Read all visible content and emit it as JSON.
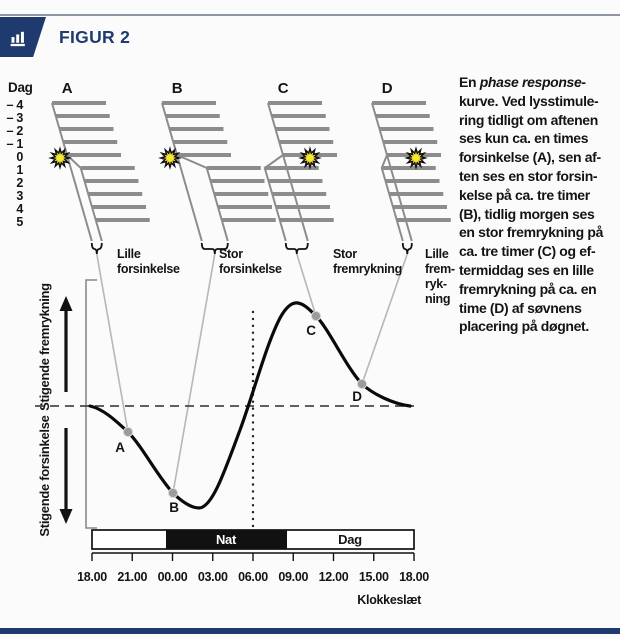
{
  "header": {
    "title": "FIGUR 2"
  },
  "icons": {
    "header": "bar-chart-icon",
    "light_stimulus": "sun-burst-icon"
  },
  "colors": {
    "navy": "#1e3a6e",
    "rule_gray": "#8e96a4",
    "bar_gray": "#8c8c8c",
    "connector_gray": "#b7b7b7",
    "sun_yellow": "#f6e832",
    "night_black": "#111111",
    "curve_black": "#0a0a0a"
  },
  "actogram": {
    "axis_title": "Dag",
    "day_labels": [
      "– 4",
      "– 3",
      "– 2",
      "– 1",
      "0",
      "1",
      "2",
      "3",
      "4",
      "5"
    ],
    "columns": [
      {
        "letter": "A",
        "label_lines": [
          "Lille",
          "forsinkelse"
        ],
        "effect": "delay",
        "shift_hours": 1
      },
      {
        "letter": "B",
        "label_lines": [
          "Stor",
          "forsinkelse"
        ],
        "effect": "delay",
        "shift_hours": 3
      },
      {
        "letter": "C",
        "label_lines": [
          "Stor",
          "fremrykning"
        ],
        "effect": "advance",
        "shift_hours": 3
      },
      {
        "letter": "D",
        "label_lines": [
          "Lille",
          "frem-",
          "ryk-",
          "ning"
        ],
        "effect": "advance",
        "shift_hours": 1
      }
    ]
  },
  "curve": {
    "y_axis_top_label": "Stigende fremrykning",
    "y_axis_bottom_label": "Stigende forsinkelse",
    "point_labels": [
      "A",
      "B",
      "C",
      "D"
    ]
  },
  "timeline": {
    "night_label": "Nat",
    "day_label": "Dag",
    "tick_labels": [
      "18.00",
      "21.00",
      "00.00",
      "03.00",
      "06.00",
      "09.00",
      "12.00",
      "15.00",
      "18.00"
    ],
    "axis_label": "Klokkeslæt"
  },
  "description": {
    "lines": [
      {
        "segs": [
          {
            "t": "En ",
            "s": "n"
          },
          {
            "t": "phase response-",
            "s": "i"
          }
        ]
      },
      {
        "segs": [
          {
            "t": "kurve. Ved lysstimule-",
            "s": "n"
          }
        ]
      },
      {
        "segs": [
          {
            "t": "ring tidligt om aftenen",
            "s": "n"
          }
        ]
      },
      {
        "segs": [
          {
            "t": "ses kun ca. en times",
            "s": "n"
          }
        ]
      },
      {
        "segs": [
          {
            "t": "forsinkelse (",
            "s": "n"
          },
          {
            "t": "A",
            "s": "b"
          },
          {
            "t": "), sen af-",
            "s": "n"
          }
        ]
      },
      {
        "segs": [
          {
            "t": "ten ses en stor forsin-",
            "s": "n"
          }
        ]
      },
      {
        "segs": [
          {
            "t": "kelse på ca. tre timer",
            "s": "n"
          }
        ]
      },
      {
        "segs": [
          {
            "t": "(",
            "s": "n"
          },
          {
            "t": "B",
            "s": "b"
          },
          {
            "t": "), tidlig morgen ses",
            "s": "n"
          }
        ]
      },
      {
        "segs": [
          {
            "t": "en stor fremrykning på",
            "s": "n"
          }
        ]
      },
      {
        "segs": [
          {
            "t": "ca. tre timer (",
            "s": "n"
          },
          {
            "t": "C",
            "s": "b"
          },
          {
            "t": ") og ef-",
            "s": "n"
          }
        ]
      },
      {
        "segs": [
          {
            "t": "termiddag ses en lille",
            "s": "n"
          }
        ]
      },
      {
        "segs": [
          {
            "t": "fremrykning på ca. en",
            "s": "n"
          }
        ]
      },
      {
        "segs": [
          {
            "t": "time (",
            "s": "n"
          },
          {
            "t": "D",
            "s": "b"
          },
          {
            "t": ") af søvnens",
            "s": "n"
          }
        ]
      },
      {
        "segs": [
          {
            "t": "placering på døgnet.",
            "s": "n"
          }
        ]
      }
    ]
  },
  "chart_data": {
    "type": "line",
    "title": "Phase response-kurve",
    "xlabel": "Klokkeslæt",
    "ylabel_positive": "Stigende fremrykning",
    "ylabel_negative": "Stigende forsinkelse",
    "x_tick_labels": [
      "18.00",
      "21.00",
      "00.00",
      "03.00",
      "06.00",
      "09.00",
      "12.00",
      "15.00",
      "18.00"
    ],
    "baseline_shift_hours": 0,
    "series": [
      {
        "name": "phase-response",
        "x_hours_after_1800": [
          0,
          1.5,
          2.7,
          4.2,
          6,
          7.5,
          8.5,
          10,
          11.5,
          12.8,
          14,
          15.2,
          16,
          16.7,
          18,
          20.2,
          22,
          24
        ],
        "shift_hours": [
          0,
          -0.35,
          -0.85,
          -1.8,
          -2.8,
          -3.1,
          -3.0,
          -2.2,
          -0.8,
          0.9,
          2.6,
          3.2,
          3.05,
          2.9,
          2.2,
          0.9,
          0.3,
          0.05
        ]
      }
    ],
    "markers": [
      {
        "label": "A",
        "clock": "20.40",
        "shift_hours": -0.9,
        "meaning": "lille forsinkelse, ca. en time"
      },
      {
        "label": "B",
        "clock": "00.00",
        "shift_hours": -2.8,
        "meaning": "stor forsinkelse, ca. tre timer"
      },
      {
        "label": "C",
        "clock": "10.40",
        "shift_hours": 2.9,
        "meaning": "stor fremrykning, ca. tre timer"
      },
      {
        "label": "D",
        "clock": "14.10",
        "shift_hours": 0.9,
        "meaning": "lille fremrykning, ca. en time"
      }
    ],
    "night_band": {
      "label": "Nat",
      "from_clock": "23.30",
      "to_clock": "08.30"
    },
    "day_band": {
      "label": "Dag",
      "from_clock": "08.30",
      "to_clock": "18.00"
    },
    "dotted_reference_clock": "06.00",
    "grid": false,
    "legend": false
  }
}
